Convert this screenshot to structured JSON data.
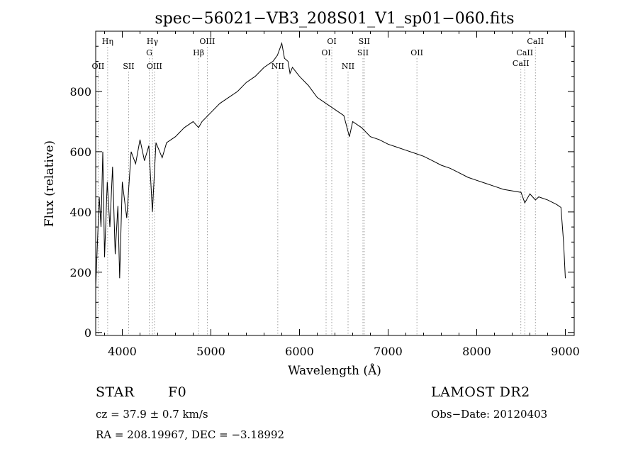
{
  "chart_data": {
    "type": "line",
    "title": "spec−56021−VB3_208S01_V1_sp01−060.fits",
    "xlabel": "Wavelength (Å)",
    "ylabel": "Flux (relative)",
    "xlim": [
      3700,
      9100
    ],
    "ylim": [
      -10,
      1000
    ],
    "xticks": [
      "4000",
      "5000",
      "6000",
      "7000",
      "8000",
      "9000"
    ],
    "yticks": [
      "0",
      "200",
      "400",
      "600",
      "800"
    ],
    "grid": false,
    "series": [
      {
        "x": [
          3700,
          3720,
          3740,
          3760,
          3780,
          3800,
          3830,
          3860,
          3890,
          3920,
          3950,
          3970,
          4000,
          4050,
          4100,
          4150,
          4200,
          4250,
          4300,
          4340,
          4380,
          4450,
          4500,
          4600,
          4700,
          4800,
          4861,
          4900,
          5000,
          5100,
          5200,
          5300,
          5400,
          5500,
          5600,
          5700,
          5750,
          5800,
          5830,
          5870,
          5893,
          5920,
          6000,
          6100,
          6200,
          6300,
          6400,
          6500,
          6563,
          6600,
          6700,
          6800,
          6900,
          7000,
          7100,
          7200,
          7300,
          7400,
          7500,
          7600,
          7700,
          7800,
          7900,
          8000,
          8100,
          8200,
          8300,
          8400,
          8500,
          8542,
          8600,
          8662,
          8700,
          8800,
          8900,
          8950,
          8980,
          9000
        ],
        "y": [
          150,
          300,
          450,
          350,
          600,
          250,
          500,
          350,
          550,
          260,
          420,
          180,
          500,
          380,
          600,
          560,
          640,
          570,
          620,
          400,
          630,
          580,
          630,
          650,
          680,
          700,
          680,
          700,
          730,
          760,
          780,
          800,
          830,
          850,
          880,
          900,
          920,
          960,
          910,
          900,
          860,
          880,
          850,
          820,
          780,
          760,
          740,
          720,
          650,
          700,
          680,
          650,
          640,
          625,
          615,
          605,
          595,
          585,
          570,
          555,
          545,
          530,
          515,
          505,
          495,
          485,
          475,
          470,
          465,
          430,
          460,
          440,
          450,
          440,
          425,
          415,
          300,
          180
        ]
      }
    ],
    "lines": [
      {
        "label": "OII",
        "x": 3727,
        "row": 3
      },
      {
        "label": "Hη",
        "x": 3835,
        "row": 0
      },
      {
        "label": "SII",
        "x": 4072,
        "row": 3
      },
      {
        "label": "Hγ",
        "x": 4340,
        "row": 0
      },
      {
        "label": "G",
        "x": 4304,
        "row": 1
      },
      {
        "label": "OIII",
        "x": 4363,
        "row": 3
      },
      {
        "label": "OIII",
        "x": 4959,
        "row": 0
      },
      {
        "label": "Hβ",
        "x": 4861,
        "row": 1
      },
      {
        "label": "NII",
        "x": 5755,
        "row": 3
      },
      {
        "label": "OI",
        "x": 6364,
        "row": 0
      },
      {
        "label": "OI",
        "x": 6300,
        "row": 1
      },
      {
        "label": "NII",
        "x": 6548,
        "row": 3
      },
      {
        "label": "SII",
        "x": 6731,
        "row": 0
      },
      {
        "label": "SII",
        "x": 6716,
        "row": 1
      },
      {
        "label": "OII",
        "x": 7325,
        "row": 1
      },
      {
        "label": "CaII",
        "x": 8662,
        "row": 0
      },
      {
        "label": "CaII",
        "x": 8542,
        "row": 1
      },
      {
        "label": "CaII",
        "x": 8498,
        "row": 2
      }
    ]
  },
  "info": {
    "class": "STAR",
    "subclass": "F0",
    "survey": "LAMOST DR2",
    "cz": "cz = 37.9 ± 0.7 km/s",
    "obs_date": "Obs−Date: 20120403",
    "coords": "RA = 208.19967, DEC =  −3.18992"
  }
}
